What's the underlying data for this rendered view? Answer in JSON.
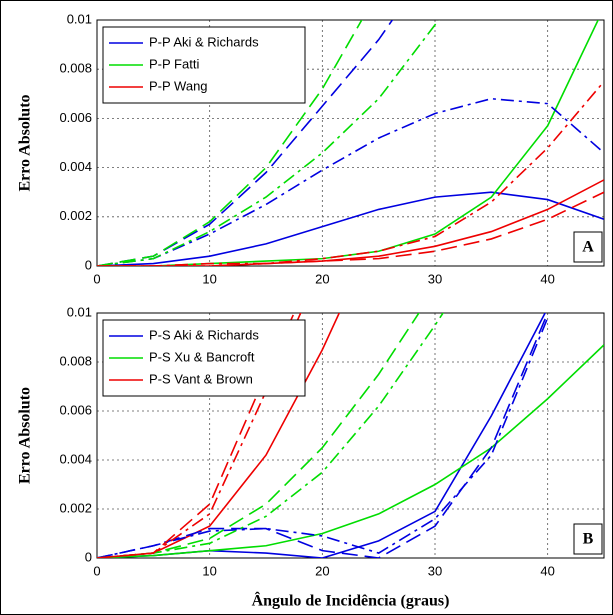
{
  "chart_data": [
    {
      "type": "line",
      "ylabel": "Erro Absoluto",
      "annotation": "A",
      "xlim": [
        0,
        45
      ],
      "xticks": [
        0,
        10,
        20,
        30,
        40
      ],
      "ylim": [
        0,
        0.01
      ],
      "yticks": [
        0,
        0.002,
        0.004,
        0.006,
        0.008,
        0.01
      ],
      "grid": true,
      "legend": "upper-left",
      "x": [
        0,
        5,
        10,
        15,
        20,
        25,
        30,
        35,
        40,
        45
      ],
      "series": [
        {
          "name": "P-P Aki & Richards",
          "color": "#0000e0",
          "dash": "solid",
          "values": [
            0,
            0.0001,
            0.0004,
            0.0009,
            0.0016,
            0.0023,
            0.0028,
            0.003,
            0.0027,
            0.0019
          ]
        },
        {
          "name": "P-P Fatti",
          "color": "#00dd00",
          "dash": "solid",
          "values": [
            0,
            0,
            0.0001,
            0.0002,
            0.0003,
            0.0006,
            0.0013,
            0.0028,
            0.0057,
            0.0105
          ]
        },
        {
          "name": "P-P Wang",
          "color": "#ee0000",
          "dash": "solid",
          "values": [
            0,
            0,
            0,
            0.0001,
            0.0002,
            0.0004,
            0.0008,
            0.0014,
            0.0023,
            0.0035
          ]
        },
        {
          "color": "#0000e0",
          "dash": "dashed",
          "values": [
            0,
            0.0004,
            0.0017,
            0.0038,
            0.0065,
            0.0092,
            0.0125,
            null,
            null,
            null
          ]
        },
        {
          "color": "#0000e0",
          "dash": "dashdot",
          "values": [
            0,
            0.0003,
            0.0013,
            0.0025,
            0.0039,
            0.0052,
            0.0062,
            0.0068,
            0.0066,
            0.0046
          ]
        },
        {
          "color": "#00dd00",
          "dash": "dashed",
          "values": [
            0,
            0.0004,
            0.0018,
            0.004,
            0.0072,
            0.0112,
            null,
            null,
            null,
            null
          ]
        },
        {
          "color": "#00dd00",
          "dash": "dashdot",
          "values": [
            0,
            0.0003,
            0.0014,
            0.0028,
            0.0046,
            0.0068,
            0.0098,
            0.013,
            null,
            null
          ]
        },
        {
          "color": "#ee0000",
          "dash": "dashed",
          "values": [
            0,
            0,
            0,
            0.0001,
            0.0002,
            0.0003,
            0.0006,
            0.0011,
            0.0019,
            0.003
          ]
        },
        {
          "color": "#ee0000",
          "dash": "dashdot",
          "values": [
            0,
            0,
            0.0001,
            0.0001,
            0.0003,
            0.0006,
            0.0012,
            0.0026,
            0.0048,
            0.0075
          ]
        }
      ]
    },
    {
      "type": "line",
      "ylabel": "Erro Absoluto",
      "xlabel": "Ângulo de Incidência (graus)",
      "annotation": "B",
      "xlim": [
        0,
        45
      ],
      "xticks": [
        0,
        10,
        20,
        30,
        40
      ],
      "ylim": [
        0,
        0.01
      ],
      "yticks": [
        0,
        0.002,
        0.004,
        0.006,
        0.008,
        0.01
      ],
      "grid": true,
      "legend": "upper-left",
      "x": [
        0,
        5,
        10,
        15,
        20,
        25,
        30,
        35,
        40,
        45
      ],
      "series": [
        {
          "name": "P-S Aki & Richards",
          "color": "#0000e0",
          "dash": "solid",
          "values": [
            0,
            0.0001,
            0.0003,
            0.0002,
            0,
            0.0007,
            0.0019,
            0.0058,
            0.0102,
            null
          ]
        },
        {
          "name": "P-S Xu & Bancroft",
          "color": "#00dd00",
          "dash": "solid",
          "values": [
            0,
            0.0001,
            0.0003,
            0.0005,
            0.001,
            0.0018,
            0.003,
            0.0045,
            0.0065,
            0.0087
          ]
        },
        {
          "name": "P-S Vant & Brown",
          "color": "#ee0000",
          "dash": "solid",
          "values": [
            0,
            0.0002,
            0.0013,
            0.0042,
            0.0085,
            0.0135,
            null,
            null,
            null,
            null
          ]
        },
        {
          "color": "#0000e0",
          "dash": "dashed",
          "values": [
            0,
            0.0005,
            0.0012,
            0.0012,
            0.0003,
            0,
            0.0013,
            0.0045,
            0.01,
            null
          ]
        },
        {
          "color": "#0000e0",
          "dash": "dashdot",
          "values": [
            0,
            0.0005,
            0.0011,
            0.0012,
            0.0009,
            0.0002,
            0.0016,
            0.0042,
            0.0098,
            null
          ]
        },
        {
          "color": "#00dd00",
          "dash": "dashed",
          "values": [
            0,
            0.0002,
            0.0008,
            0.0022,
            0.0045,
            0.0075,
            0.011,
            null,
            null,
            null
          ]
        },
        {
          "color": "#00dd00",
          "dash": "dashdot",
          "values": [
            0,
            0.0002,
            0.0006,
            0.0017,
            0.0035,
            0.0062,
            0.0095,
            0.013,
            null,
            null
          ]
        },
        {
          "color": "#ee0000",
          "dash": "dashed",
          "values": [
            0,
            0.0002,
            0.0022,
            0.0075,
            0.0125,
            null,
            null,
            null,
            null,
            null
          ]
        },
        {
          "color": "#ee0000",
          "dash": "dashdot",
          "values": [
            0,
            0.0002,
            0.0018,
            0.0068,
            0.012,
            null,
            null,
            null,
            null,
            null
          ]
        }
      ]
    }
  ]
}
